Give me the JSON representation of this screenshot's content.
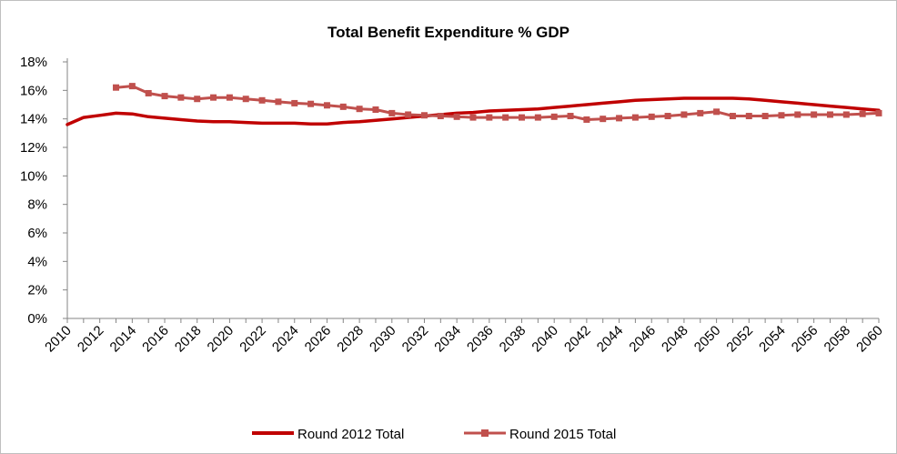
{
  "chart_data": {
    "type": "line",
    "title": "Total Benefit Expenditure % GDP",
    "xlabel": "",
    "ylabel": "",
    "ylim": [
      0,
      18
    ],
    "y_ticks": [
      "0%",
      "2%",
      "4%",
      "6%",
      "8%",
      "10%",
      "12%",
      "14%",
      "16%",
      "18%"
    ],
    "x_ticks": [
      "2010",
      "2012",
      "2014",
      "2016",
      "2018",
      "2020",
      "2022",
      "2024",
      "2026",
      "2028",
      "2030",
      "2032",
      "2034",
      "2036",
      "2038",
      "2040",
      "2042",
      "2044",
      "2046",
      "2048",
      "2050",
      "2052",
      "2054",
      "2056",
      "2058",
      "2060"
    ],
    "x": [
      2010,
      2011,
      2012,
      2013,
      2014,
      2015,
      2016,
      2017,
      2018,
      2019,
      2020,
      2021,
      2022,
      2023,
      2024,
      2025,
      2026,
      2027,
      2028,
      2029,
      2030,
      2031,
      2032,
      2033,
      2034,
      2035,
      2036,
      2037,
      2038,
      2039,
      2040,
      2041,
      2042,
      2043,
      2044,
      2045,
      2046,
      2047,
      2048,
      2049,
      2050,
      2051,
      2052,
      2053,
      2054,
      2055,
      2056,
      2057,
      2058,
      2059,
      2060
    ],
    "grid": false,
    "legend_position": "bottom",
    "series": [
      {
        "name": "Round 2012 Total",
        "color": "#c00000",
        "marker": "none",
        "values": [
          13.6,
          14.1,
          14.25,
          14.4,
          14.35,
          14.15,
          14.05,
          13.95,
          13.85,
          13.8,
          13.8,
          13.75,
          13.7,
          13.7,
          13.7,
          13.65,
          13.65,
          13.75,
          13.8,
          13.9,
          14.0,
          14.1,
          14.2,
          14.3,
          14.4,
          14.45,
          14.55,
          14.6,
          14.65,
          14.7,
          14.8,
          14.9,
          15.0,
          15.1,
          15.2,
          15.3,
          15.35,
          15.4,
          15.45,
          15.45,
          15.45,
          15.45,
          15.4,
          15.3,
          15.2,
          15.1,
          15.0,
          14.9,
          14.8,
          14.7,
          14.6
        ]
      },
      {
        "name": "Round 2015 Total",
        "color": "#c0504d",
        "marker": "square",
        "values": [
          null,
          null,
          null,
          16.2,
          16.3,
          15.8,
          15.6,
          15.5,
          15.4,
          15.5,
          15.5,
          15.4,
          15.3,
          15.2,
          15.1,
          15.05,
          14.95,
          14.85,
          14.7,
          14.65,
          14.4,
          14.3,
          14.25,
          14.2,
          14.15,
          14.1,
          14.1,
          14.1,
          14.1,
          14.1,
          14.15,
          14.2,
          13.95,
          14.0,
          14.05,
          14.1,
          14.15,
          14.2,
          14.3,
          14.4,
          14.5,
          14.2,
          14.2,
          14.2,
          14.25,
          14.3,
          14.3,
          14.3,
          14.3,
          14.35,
          14.4
        ]
      }
    ]
  }
}
